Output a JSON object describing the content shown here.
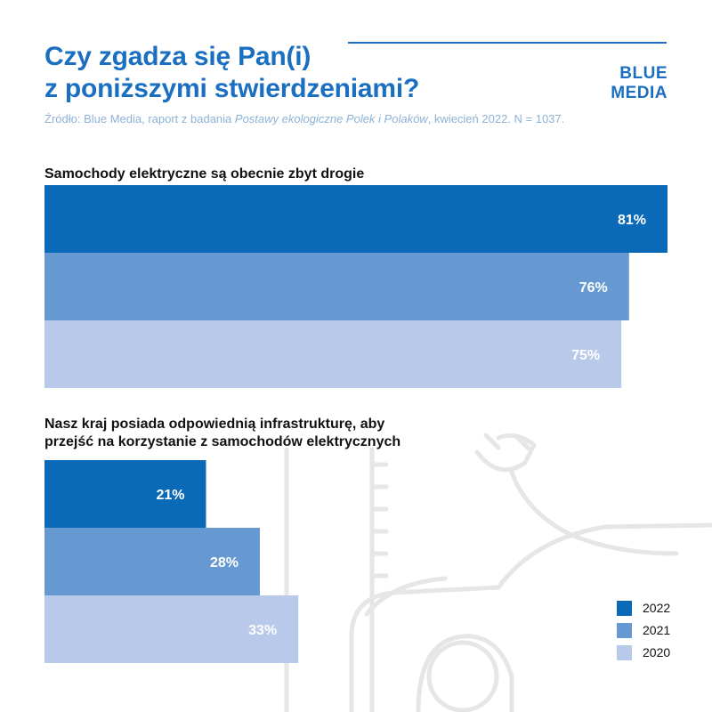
{
  "title": {
    "line1": "Czy zgadza się Pan(i)",
    "line2": "z poniższymi stwierdzeniami?"
  },
  "logo": {
    "line1": "BLUE",
    "line2": "MEDIA"
  },
  "source": {
    "prefix": "Źródło: Blue Media, raport z badania ",
    "report": "Postawy ekologiczne Polek i Polaków",
    "suffix": ", kwiecień 2022. N = 1037."
  },
  "colors": {
    "2022": "#0b6ab8",
    "2021": "#6699d2",
    "2020": "#b8c9ea",
    "accent": "#1a6fc1"
  },
  "chart_data": [
    {
      "type": "bar",
      "orientation": "horizontal",
      "title_lines": [
        "Samochody elektryczne są obecnie zbyt drogie"
      ],
      "series": [
        {
          "name": "2022",
          "value": 81,
          "label": "81%"
        },
        {
          "name": "2021",
          "value": 76,
          "label": "76%"
        },
        {
          "name": "2020",
          "value": 75,
          "label": "75%"
        }
      ],
      "xlim": [
        0,
        100
      ]
    },
    {
      "type": "bar",
      "orientation": "horizontal",
      "title_lines": [
        "Nasz kraj posiada odpowiednią infrastrukturę, aby",
        "przejść na korzystanie z samochodów elektrycznych"
      ],
      "series": [
        {
          "name": "2022",
          "value": 21,
          "label": "21%"
        },
        {
          "name": "2021",
          "value": 28,
          "label": "28%"
        },
        {
          "name": "2020",
          "value": 33,
          "label": "33%"
        }
      ],
      "xlim": [
        0,
        100
      ]
    }
  ],
  "legend": [
    {
      "label": "2022",
      "color_key": "2022"
    },
    {
      "label": "2021",
      "color_key": "2021"
    },
    {
      "label": "2020",
      "color_key": "2020"
    }
  ]
}
